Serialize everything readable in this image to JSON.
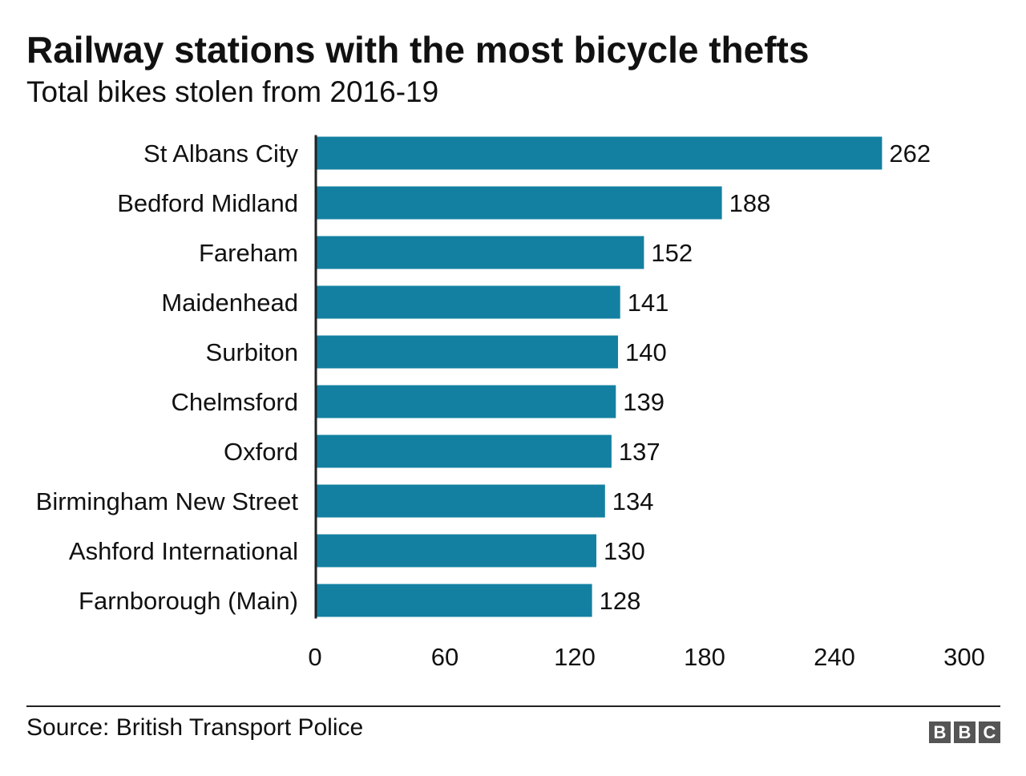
{
  "title": "Railway stations with the most bicycle thefts",
  "subtitle": "Total bikes stolen from 2016-19",
  "source": "Source: British Transport Police",
  "logo": [
    "B",
    "B",
    "C"
  ],
  "colors": {
    "bar": "#1380a1",
    "axis": "#222222",
    "text": "#111111"
  },
  "chart_data": {
    "type": "bar",
    "orientation": "horizontal",
    "title": "Railway stations with the most bicycle thefts",
    "subtitle": "Total bikes stolen from 2016-19",
    "categories": [
      "St Albans City",
      "Bedford Midland",
      "Fareham",
      "Maidenhead",
      "Surbiton",
      "Chelmsford",
      "Oxford",
      "Birmingham New Street",
      "Ashford International",
      "Farnborough (Main)"
    ],
    "values": [
      262,
      188,
      152,
      141,
      140,
      139,
      137,
      134,
      130,
      128
    ],
    "xlim": [
      0,
      300
    ],
    "xticks": [
      0,
      60,
      120,
      180,
      240,
      300
    ],
    "xlabel": "",
    "ylabel": "",
    "grid": false,
    "data_labels": true
  }
}
